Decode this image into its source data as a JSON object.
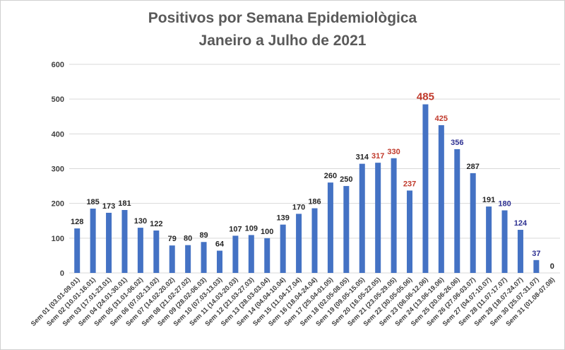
{
  "chart_data": {
    "type": "bar",
    "title_lines": [
      "Positivos por Semana Epidemiològica",
      "Janeiro a Julho de 2021"
    ],
    "xlabel": "",
    "ylabel": "",
    "ylim": [
      0,
      600
    ],
    "yticks": [
      0,
      100,
      200,
      300,
      400,
      500,
      600
    ],
    "grid": true,
    "bar_color": "#4472c4",
    "grid_color": "#d9d9d9",
    "categories": [
      "Sem 01 (03.01-09.01)",
      "Sem 02 (10.01-16.01)",
      "Sem 03 (17.01-23.01)",
      "Sem 04 (24.01-30.01)",
      "Sem 05 (31.01-06.02)",
      "Sem 06 (07.02-13.02)",
      "Sem 07 (14.02-20.02)",
      "Sem 08 (21.02-27.02)",
      "Sem 09 (28.02-06.03)",
      "Sem 10 (07.03-13.03)",
      "Sem 11 (14.03-20.03)",
      "Sem 12 (21.03-27.03)",
      "Sem 13 (28.03-03.04)",
      "Sem 14 (04.04-10.04)",
      "Sem 15 (11.04-17.04)",
      "Sem 16 (18.04-24.04)",
      "Sem 17 (25.04-01.05)",
      "Sem 18 (02.05-08.05)",
      "Sem 19 (09.05-15.05)",
      "Sem 20 (16.05-22.05)",
      "Sem 21 (23.05-29.05)",
      "Sem 22 (30.05-05.06)",
      "Sem 23 (06.06-12.06)",
      "Sem 24 (13.06-19.06)",
      "Sem 25 (20.06-26.06)",
      "Sem 26 (27.06-03.07)",
      "Sem 27 (04.07-10.07)",
      "Sem 28 (11.07-17.07)",
      "Sem 29 (18.07-24.07)",
      "Sem 30 (25.07-31.07)",
      "Sem 31 (01.08-07.08)"
    ],
    "values": [
      128,
      185,
      173,
      181,
      130,
      122,
      79,
      80,
      89,
      64,
      107,
      109,
      100,
      139,
      170,
      186,
      260,
      250,
      314,
      317,
      330,
      237,
      485,
      425,
      356,
      287,
      191,
      180,
      124,
      37,
      0
    ],
    "label_colors": [
      "#262626",
      "#262626",
      "#262626",
      "#262626",
      "#262626",
      "#262626",
      "#262626",
      "#262626",
      "#262626",
      "#262626",
      "#262626",
      "#262626",
      "#262626",
      "#262626",
      "#262626",
      "#262626",
      "#262626",
      "#262626",
      "#262626",
      "#c0392b",
      "#c0392b",
      "#c0392b",
      "#c0392b",
      "#c0392b",
      "#2e3192",
      "#262626",
      "#262626",
      "#2e3192",
      "#2e3192",
      "#2e3192",
      "#262626"
    ],
    "highlight_index": 22
  }
}
